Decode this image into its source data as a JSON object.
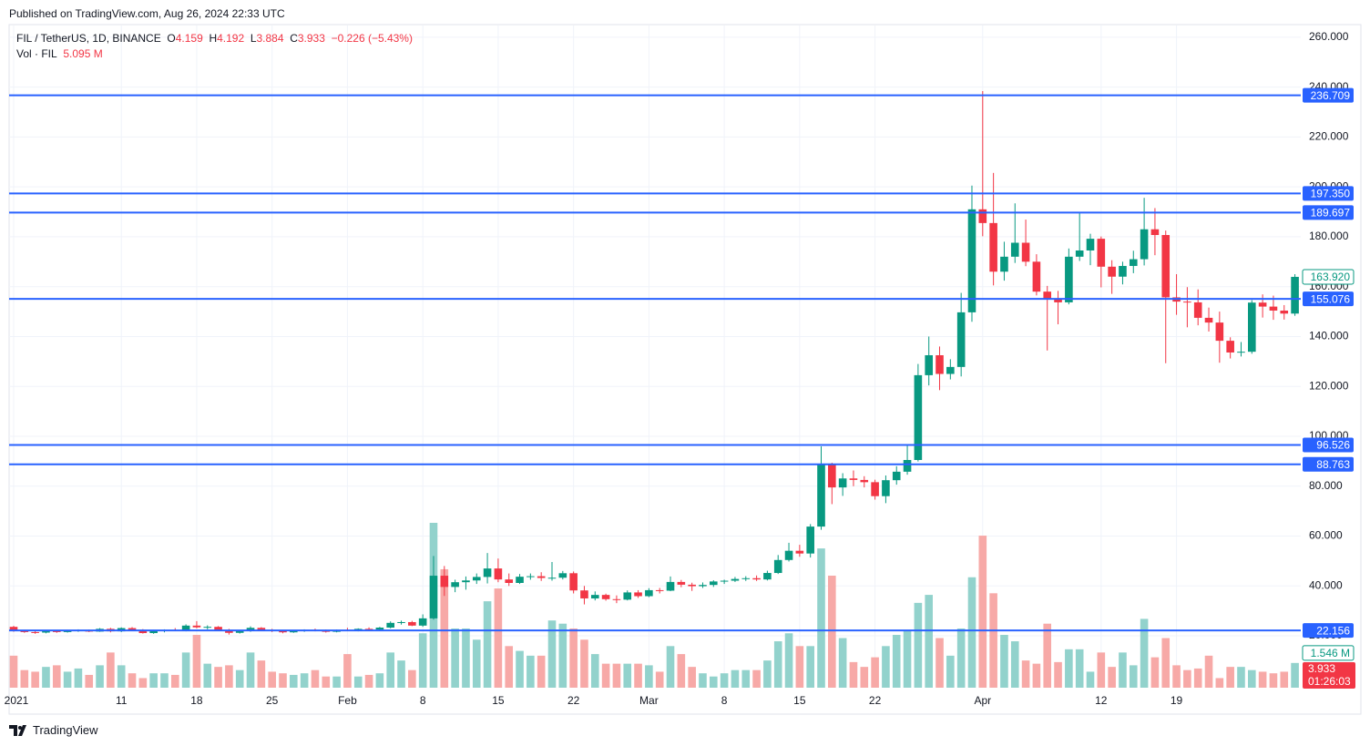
{
  "published": "Published on TradingView.com, Aug 26, 2024 22:33 UTC",
  "header": {
    "symbol": "FIL / TetherUS, 1D, BINANCE",
    "o_label": "O",
    "o": 4.159,
    "h_label": "H",
    "h": 4.192,
    "l_label": "L",
    "l": 3.884,
    "c_label": "C",
    "c": 3.933,
    "change": "−0.226 (−5.43%)",
    "vol_label": "Vol · FIL",
    "vol": "5.095 M"
  },
  "chart_data": {
    "type": "candlestick",
    "categories": [
      "2021",
      null,
      null,
      null,
      null,
      null,
      null,
      null,
      null,
      null,
      "11",
      null,
      null,
      null,
      null,
      null,
      null,
      "18",
      null,
      null,
      null,
      null,
      null,
      null,
      "25",
      null,
      null,
      null,
      null,
      null,
      null,
      "Feb",
      null,
      null,
      null,
      null,
      null,
      null,
      "8",
      null,
      null,
      null,
      null,
      null,
      null,
      "15",
      null,
      null,
      null,
      null,
      null,
      null,
      "22",
      null,
      null,
      null,
      null,
      null,
      null,
      "Mar",
      null,
      null,
      null,
      null,
      null,
      null,
      "8",
      null,
      null,
      null,
      null,
      null,
      null,
      "15",
      null,
      null,
      null,
      null,
      null,
      null,
      "22",
      null,
      null,
      null,
      null,
      null,
      null,
      null,
      null,
      null,
      "Apr",
      null,
      null,
      null,
      null,
      null,
      null,
      null,
      null,
      null,
      null,
      "12",
      null,
      null,
      null,
      null,
      null,
      null,
      "19",
      null,
      null,
      null,
      null,
      null,
      null,
      null,
      null,
      null,
      null,
      null
    ],
    "ohlc": [
      [
        23.6,
        24.0,
        21.6,
        21.9
      ],
      [
        21.9,
        22.4,
        21.2,
        21.5
      ],
      [
        21.5,
        22.0,
        20.8,
        21.3
      ],
      [
        21.3,
        22.2,
        21.0,
        21.9
      ],
      [
        21.9,
        22.3,
        21.2,
        21.5
      ],
      [
        21.5,
        22.4,
        21.3,
        22.1
      ],
      [
        22.1,
        22.6,
        21.6,
        22.2
      ],
      [
        22.2,
        22.5,
        21.5,
        21.7
      ],
      [
        21.7,
        23.1,
        21.6,
        22.8
      ],
      [
        22.8,
        23.2,
        21.4,
        21.8
      ],
      [
        21.8,
        23.4,
        21.5,
        23.1
      ],
      [
        23.1,
        23.5,
        22.0,
        22.4
      ],
      [
        22.4,
        22.7,
        20.9,
        21.1
      ],
      [
        21.1,
        22.4,
        20.8,
        21.9
      ],
      [
        21.9,
        22.6,
        21.4,
        22.3
      ],
      [
        22.3,
        23.1,
        21.9,
        22.0
      ],
      [
        22.0,
        24.6,
        21.8,
        24.1
      ],
      [
        24.1,
        25.9,
        23.0,
        23.4
      ],
      [
        23.4,
        24.2,
        22.6,
        23.6
      ],
      [
        23.6,
        23.9,
        22.0,
        22.4
      ],
      [
        22.4,
        22.8,
        20.5,
        21.2
      ],
      [
        21.2,
        22.4,
        20.9,
        22.0
      ],
      [
        22.0,
        23.8,
        21.6,
        23.2
      ],
      [
        23.2,
        23.5,
        21.9,
        22.3
      ],
      [
        22.3,
        22.8,
        21.5,
        22.0
      ],
      [
        22.0,
        22.3,
        21.0,
        21.4
      ],
      [
        21.4,
        22.3,
        21.2,
        22.0
      ],
      [
        22.0,
        22.6,
        21.6,
        22.4
      ],
      [
        22.4,
        22.9,
        21.8,
        22.0
      ],
      [
        22.0,
        22.5,
        21.3,
        21.6
      ],
      [
        21.6,
        22.5,
        21.4,
        22.3
      ],
      [
        22.3,
        23.2,
        21.9,
        22.0
      ],
      [
        22.0,
        23.0,
        21.8,
        22.8
      ],
      [
        22.8,
        23.4,
        22.1,
        22.5
      ],
      [
        22.5,
        23.6,
        22.2,
        23.3
      ],
      [
        23.3,
        25.8,
        23.0,
        25.2
      ],
      [
        25.2,
        26.1,
        24.5,
        25.5
      ],
      [
        25.5,
        26.0,
        23.9,
        24.1
      ],
      [
        24.1,
        28.6,
        23.6,
        27.0
      ],
      [
        27.0,
        52.0,
        26.5,
        44.1
      ],
      [
        44.1,
        48.0,
        36.0,
        39.6
      ],
      [
        39.6,
        42.5,
        37.5,
        41.5
      ],
      [
        41.5,
        43.8,
        38.5,
        42.2
      ],
      [
        42.2,
        45.0,
        40.8,
        43.6
      ],
      [
        43.6,
        53.2,
        41.0,
        47.0
      ],
      [
        47.0,
        51.0,
        41.5,
        42.6
      ],
      [
        42.6,
        45.0,
        40.0,
        41.2
      ],
      [
        41.2,
        44.8,
        40.8,
        43.7
      ],
      [
        43.7,
        45.0,
        42.5,
        43.9
      ],
      [
        43.9,
        45.5,
        42.0,
        43.2
      ],
      [
        43.2,
        49.6,
        42.1,
        43.3
      ],
      [
        43.3,
        46.0,
        42.6,
        45.1
      ],
      [
        45.1,
        45.8,
        37.0,
        38.2
      ],
      [
        38.2,
        40.0,
        32.6,
        35.0
      ],
      [
        35.0,
        37.8,
        34.2,
        36.4
      ],
      [
        36.4,
        36.9,
        34.1,
        34.7
      ],
      [
        34.7,
        36.2,
        33.1,
        34.5
      ],
      [
        34.5,
        38.2,
        34.2,
        37.4
      ],
      [
        37.4,
        38.3,
        35.2,
        35.9
      ],
      [
        35.9,
        39.1,
        35.5,
        38.3
      ],
      [
        38.3,
        39.2,
        37.0,
        38.1
      ],
      [
        38.1,
        43.8,
        37.9,
        41.6
      ],
      [
        41.6,
        42.4,
        39.5,
        40.5
      ],
      [
        40.5,
        41.3,
        38.0,
        39.9
      ],
      [
        39.9,
        41.4,
        39.2,
        40.4
      ],
      [
        40.4,
        42.3,
        39.6,
        41.8
      ],
      [
        41.8,
        42.5,
        40.8,
        42.1
      ],
      [
        42.1,
        43.6,
        41.6,
        42.8
      ],
      [
        42.8,
        43.9,
        42.0,
        43.1
      ],
      [
        43.1,
        44.2,
        42.0,
        42.6
      ],
      [
        42.6,
        46.1,
        42.2,
        45.2
      ],
      [
        45.2,
        52.4,
        44.8,
        50.4
      ],
      [
        50.4,
        57.3,
        49.8,
        54.1
      ],
      [
        54.1,
        56.5,
        51.7,
        53.0
      ],
      [
        53.0,
        64.8,
        51.4,
        63.8
      ],
      [
        63.8,
        96.0,
        62.5,
        88.7
      ],
      [
        88.7,
        89.4,
        72.8,
        79.5
      ],
      [
        79.5,
        85.2,
        76.1,
        83.1
      ],
      [
        83.1,
        86.3,
        80.0,
        82.5
      ],
      [
        82.5,
        84.0,
        79.5,
        81.6
      ],
      [
        81.6,
        82.6,
        74.6,
        76.0
      ],
      [
        76.0,
        84.3,
        73.2,
        82.4
      ],
      [
        82.4,
        88.0,
        80.6,
        85.8
      ],
      [
        85.8,
        96.5,
        84.6,
        90.5
      ],
      [
        90.5,
        129.0,
        89.9,
        124.5
      ],
      [
        124.5,
        140.0,
        120.4,
        132.5
      ],
      [
        132.5,
        136.0,
        118.5,
        125.0
      ],
      [
        125.0,
        130.9,
        122.8,
        127.8
      ],
      [
        127.8,
        157.5,
        124.0,
        149.7
      ],
      [
        149.7,
        200.5,
        145.9,
        191.0
      ],
      [
        191.0,
        238.4,
        180.2,
        185.5
      ],
      [
        185.5,
        205.6,
        160.5,
        166.0
      ],
      [
        166.0,
        178.0,
        162.4,
        172.0
      ],
      [
        172.0,
        193.4,
        169.5,
        177.6
      ],
      [
        177.6,
        186.9,
        168.2,
        170.0
      ],
      [
        170.0,
        173.0,
        156.5,
        158.0
      ],
      [
        158.0,
        160.3,
        134.4,
        155.0
      ],
      [
        155.0,
        158.3,
        144.9,
        153.7
      ],
      [
        153.7,
        175.3,
        152.9,
        172.0
      ],
      [
        172.0,
        189.5,
        170.3,
        174.5
      ],
      [
        174.5,
        181.2,
        168.6,
        179.2
      ],
      [
        179.2,
        180.1,
        159.7,
        168.0
      ],
      [
        168.0,
        170.6,
        157.1,
        164.0
      ],
      [
        164.0,
        170.0,
        160.9,
        168.3
      ],
      [
        168.3,
        174.4,
        165.4,
        171.0
      ],
      [
        171.0,
        195.6,
        168.5,
        183.0
      ],
      [
        183.0,
        191.5,
        172.6,
        180.7
      ],
      [
        180.7,
        182.5,
        129.3,
        155.7
      ],
      [
        155.7,
        165.0,
        148.7,
        154.0
      ],
      [
        154.0,
        159.8,
        143.7,
        153.7
      ],
      [
        153.7,
        158.9,
        144.5,
        147.5
      ],
      [
        147.5,
        151.6,
        142.0,
        145.6
      ],
      [
        145.6,
        150.0,
        129.5,
        138.3
      ],
      [
        138.3,
        139.7,
        131.2,
        133.6
      ],
      [
        133.6,
        137.8,
        132.0,
        133.9
      ],
      [
        133.9,
        154.6,
        133.1,
        153.6
      ],
      [
        153.6,
        156.9,
        147.6,
        152.0
      ],
      [
        152.0,
        156.4,
        146.7,
        150.4
      ],
      [
        150.4,
        152.6,
        146.8,
        149.2
      ],
      [
        149.2,
        165.0,
        148.3,
        163.92
      ]
    ],
    "volumes": [
      2.0,
      1.1,
      1.0,
      1.3,
      1.4,
      1.0,
      1.2,
      0.8,
      1.4,
      2.2,
      1.4,
      0.9,
      0.6,
      0.9,
      0.9,
      0.8,
      2.2,
      3.3,
      1.5,
      1.3,
      1.4,
      1.1,
      2.2,
      1.7,
      1.0,
      0.9,
      0.8,
      0.9,
      1.1,
      0.7,
      0.7,
      2.1,
      0.7,
      0.8,
      0.9,
      2.2,
      1.7,
      1.1,
      3.4,
      10.3,
      7.4,
      3.7,
      3.7,
      3.0,
      5.4,
      6.2,
      2.6,
      2.3,
      2.0,
      2.0,
      4.2,
      4.0,
      3.7,
      3.0,
      2.1,
      1.5,
      1.5,
      1.5,
      1.5,
      1.4,
      1.0,
      2.6,
      2.1,
      1.3,
      0.9,
      0.7,
      0.9,
      1.1,
      1.1,
      1.1,
      1.7,
      2.9,
      3.4,
      2.6,
      2.6,
      8.7,
      7.0,
      3.1,
      1.6,
      1.3,
      1.9,
      2.6,
      3.3,
      3.6,
      5.3,
      5.8,
      3.1,
      2.0,
      3.7,
      6.9,
      9.5,
      5.9,
      3.3,
      2.9,
      1.7,
      1.5,
      4.0,
      1.6,
      2.4,
      2.4,
      1.0,
      2.2,
      1.3,
      2.2,
      1.4,
      4.3,
      1.9,
      3.1,
      1.4,
      1.1,
      1.2,
      2.0,
      0.6,
      1.3,
      1.3,
      1.1,
      1.0,
      0.9,
      1.0,
      1.546
    ],
    "up_color": "#089981",
    "down_color": "#f23645",
    "up_volume_color": "#92d2cc",
    "down_volume_color": "#f7a9a7",
    "ylim": [
      -0.8,
      264.7
    ],
    "yticks": [
      {
        "value": 20,
        "label": "20.000"
      },
      {
        "value": 40,
        "label": "40.000"
      },
      {
        "value": 60,
        "label": "60.000"
      },
      {
        "value": 80,
        "label": "80.000"
      },
      {
        "value": 100,
        "label": "100.000"
      },
      {
        "value": 120,
        "label": "120.000"
      },
      {
        "value": 140,
        "label": "140.000"
      },
      {
        "value": 160,
        "label": "160.000"
      },
      {
        "value": 180,
        "label": "180.000"
      },
      {
        "value": 200,
        "label": "200.000"
      },
      {
        "value": 220,
        "label": "220.000"
      },
      {
        "value": 240,
        "label": "240.000"
      },
      {
        "value": 260,
        "label": "260.000"
      }
    ],
    "grid": true,
    "levels": [
      236.709,
      197.35,
      189.697,
      155.076,
      96.526,
      88.763,
      22.156
    ],
    "level_labels": [
      "236.709",
      "197.350",
      "189.697",
      "155.076",
      "96.526",
      "88.763",
      "22.156"
    ],
    "level_color": "#2962ff",
    "last_price": {
      "value": 163.92,
      "label": "163.920"
    },
    "last_volume": {
      "value": 1.546,
      "label": "1.546 M"
    },
    "countdown": "01:26:03"
  },
  "footer": {
    "brand": "TradingView"
  }
}
